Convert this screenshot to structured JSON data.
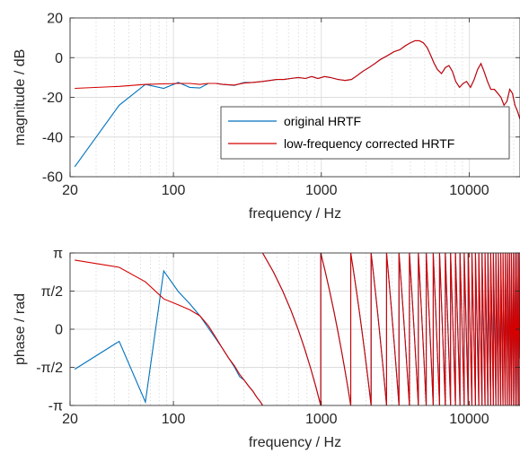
{
  "chart_data": [
    {
      "type": "line",
      "xscale": "log",
      "xlim": [
        20,
        22050
      ],
      "ylim": [
        -60,
        20
      ],
      "xticks": [
        20,
        100,
        1000,
        10000
      ],
      "xtick_labels": [
        "20",
        "100",
        "1000",
        "10000"
      ],
      "yticks": [
        -60,
        -40,
        -20,
        0,
        20
      ],
      "ytick_labels": [
        "-60",
        "-40",
        "-20",
        "0",
        "20"
      ],
      "xlabel": "frequency / Hz",
      "ylabel": "magnitude / dB",
      "grid": true,
      "legend_position": "bottom-right",
      "series": [
        {
          "name": "original HRTF",
          "color": "#0072bd",
          "x": [
            21.5,
            43,
            64.6,
            86,
            108,
            129,
            151,
            172,
            194,
            215,
            258,
            301,
            344,
            400,
            450,
            500,
            560,
            620,
            700,
            780,
            860,
            950,
            1050,
            1150,
            1300,
            1450,
            1600,
            1750,
            1900,
            2100,
            2300,
            2500,
            2800,
            3100,
            3400,
            3700,
            4000,
            4300,
            4600,
            4900,
            5200,
            5500,
            5800,
            6100,
            6500,
            6900,
            7300,
            7700,
            8100,
            8600,
            9100,
            9600,
            10200,
            10800,
            11400,
            12000,
            12600,
            13300,
            14000,
            14800,
            15600,
            16400,
            17200,
            18000,
            18800,
            19600,
            20400,
            21200,
            22050
          ],
          "y": [
            -55,
            -24,
            -13.5,
            -15.5,
            -12.5,
            -15,
            -15.3,
            -13,
            -13,
            -13.5,
            -14,
            -12.5,
            -12.5,
            -12,
            -11.5,
            -11,
            -11,
            -10.5,
            -10,
            -10.5,
            -9.5,
            -10.5,
            -9.5,
            -10,
            -11,
            -11.5,
            -11,
            -9,
            -7,
            -5,
            -3,
            -1,
            1,
            3,
            4,
            6,
            7.5,
            8.5,
            8.5,
            7.5,
            5,
            1,
            -3,
            -6,
            -8,
            -5,
            -4,
            -7,
            -12,
            -15,
            -13,
            -12,
            -15,
            -11,
            -6,
            -3,
            -7,
            -12,
            -16,
            -16,
            -18,
            -20,
            -24,
            -22,
            -16,
            -18,
            -24,
            -27,
            -31
          ]
        },
        {
          "name": "low-frequency corrected HRTF",
          "color": "#d40000",
          "x": [
            21.5,
            43,
            64.6,
            86,
            108,
            129,
            151,
            172,
            194,
            215,
            258,
            301,
            344,
            400,
            450,
            500,
            560,
            620,
            700,
            780,
            860,
            950,
            1050,
            1150,
            1300,
            1450,
            1600,
            1750,
            1900,
            2100,
            2300,
            2500,
            2800,
            3100,
            3400,
            3700,
            4000,
            4300,
            4600,
            4900,
            5200,
            5500,
            5800,
            6100,
            6500,
            6900,
            7300,
            7700,
            8100,
            8600,
            9100,
            9600,
            10200,
            10800,
            11400,
            12000,
            12600,
            13300,
            14000,
            14800,
            15600,
            16400,
            17200,
            18000,
            18800,
            19600,
            20400,
            21200,
            22050
          ],
          "y": [
            -15.5,
            -14.5,
            -13.5,
            -13.2,
            -13,
            -13,
            -13.5,
            -13,
            -13,
            -13.5,
            -13.8,
            -12.8,
            -12.5,
            -12,
            -11.5,
            -11,
            -11,
            -10.5,
            -10,
            -10.5,
            -9.5,
            -10.5,
            -9.5,
            -10,
            -11,
            -11.5,
            -11,
            -9,
            -7,
            -5,
            -3,
            -1,
            1,
            3,
            4,
            6,
            7.5,
            8.5,
            8.5,
            7.5,
            5,
            1,
            -3,
            -6,
            -8,
            -5,
            -4,
            -7,
            -12,
            -15,
            -13,
            -12,
            -15,
            -11,
            -6,
            -3,
            -7,
            -12,
            -16,
            -16,
            -18,
            -20,
            -24,
            -22,
            -16,
            -18,
            -24,
            -27,
            -31
          ]
        }
      ]
    },
    {
      "type": "line",
      "xscale": "log",
      "xlim": [
        20,
        22050
      ],
      "ylim": [
        -3.14159,
        3.14159
      ],
      "xticks": [
        20,
        100,
        1000,
        10000
      ],
      "xtick_labels": [
        "20",
        "100",
        "1000",
        "10000"
      ],
      "yticks": [
        -3.14159,
        -1.5708,
        0,
        1.5708,
        3.14159
      ],
      "ytick_labels": [
        "-π",
        "-π/2",
        "0",
        "π/2",
        "π"
      ],
      "xlabel": "frequency / Hz",
      "ylabel": "phase / rad",
      "grid": true,
      "series": [
        {
          "name": "original HRTF",
          "color": "#0072bd",
          "x": [
            21.5,
            43,
            64.6,
            86,
            108,
            129,
            151,
            172,
            194,
            215,
            237,
            258,
            280,
            301,
            323,
            344,
            366,
            388,
            401
          ],
          "y": [
            -1.65,
            -0.5,
            -3.0,
            2.4,
            1.55,
            1.05,
            0.55,
            0.05,
            -0.4,
            -0.8,
            -1.2,
            -1.55,
            -1.95,
            -2.1,
            -2.35,
            -2.55,
            -2.8,
            -3.0,
            -3.14
          ]
        },
        {
          "name": "low-frequency corrected HRTF",
          "color": "#d40000",
          "x": [
            21.5,
            43,
            64.6,
            86,
            108,
            129,
            151,
            172,
            194,
            215,
            237,
            258,
            280,
            301,
            323,
            344,
            366,
            388,
            401
          ],
          "y": [
            2.85,
            2.55,
            1.95,
            1.25,
            1.0,
            0.8,
            0.55,
            0.15,
            -0.35,
            -0.8,
            -1.2,
            -1.5,
            -1.85,
            -2.1,
            -2.35,
            -2.55,
            -2.8,
            -3.0,
            -3.14
          ]
        }
      ],
      "wrapped_phase": {
        "description": "above 401 Hz both series coincide as a linear phase ramp wrapped into [-π, π]",
        "start_frequency": 401,
        "end_frequency": 22050,
        "wrap_period_hz": 590
      }
    }
  ]
}
